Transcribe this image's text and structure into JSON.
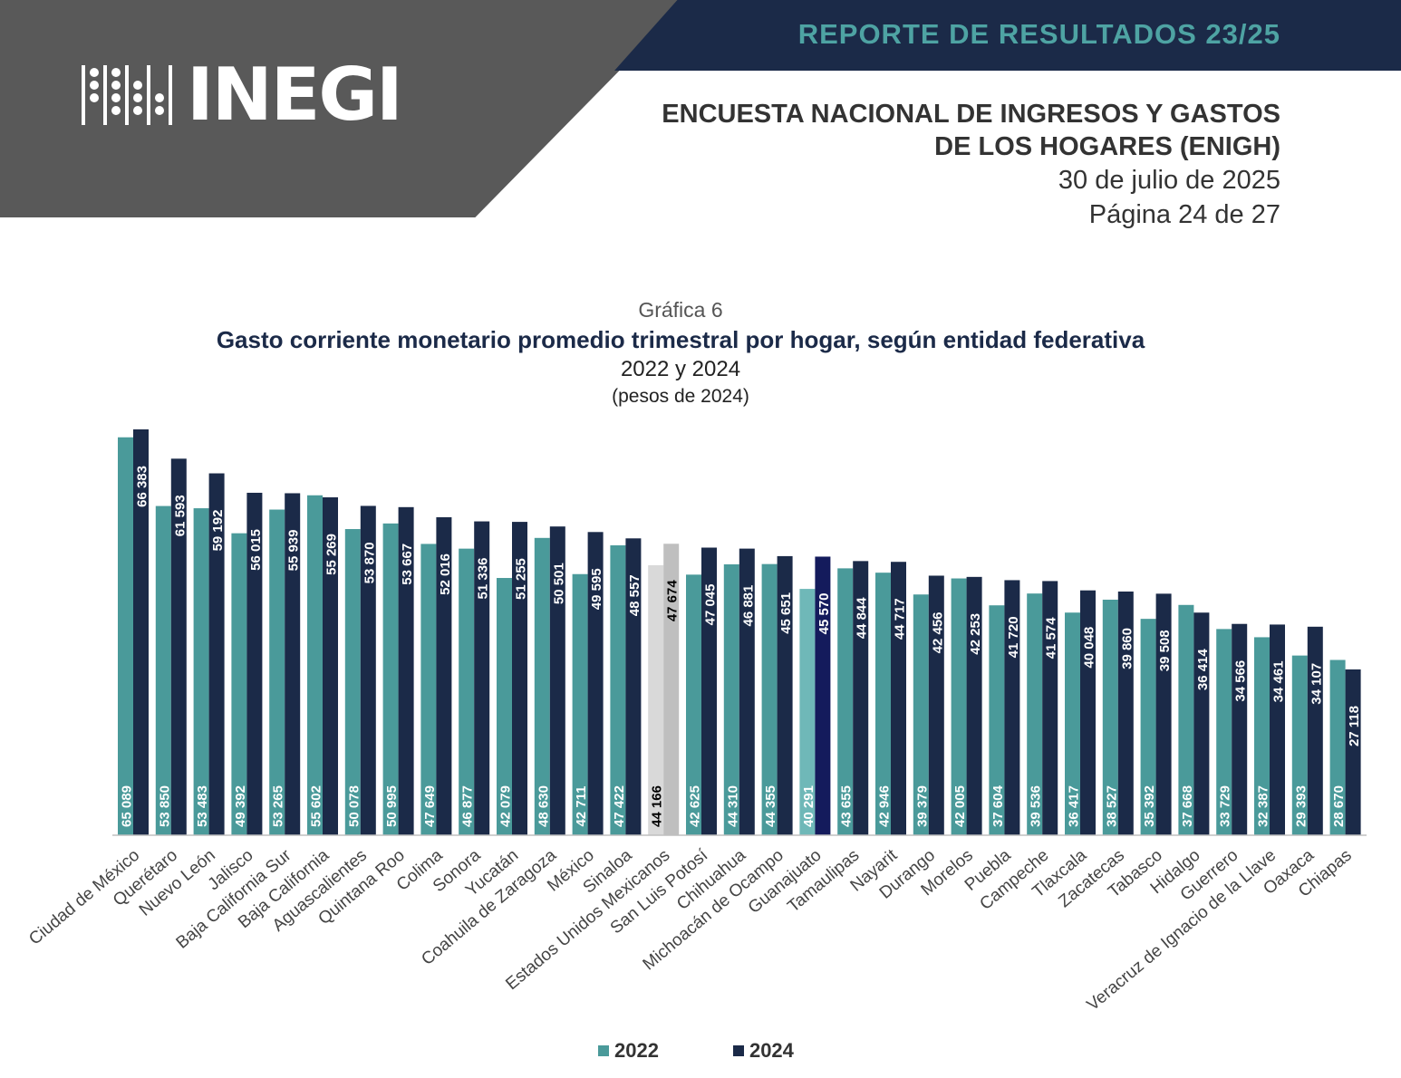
{
  "header": {
    "report_title": "REPORTE DE RESULTADOS 23/25",
    "logo_text": "INEGI",
    "survey_title_line1": "ENCUESTA NACIONAL DE INGRESOS Y GASTOS",
    "survey_title_line2": "DE LOS HOGARES (ENIGH)",
    "date": "30 de julio de 2025",
    "page": "Página 24 de 27"
  },
  "colors": {
    "series_2022": "#4a9a9a",
    "series_2024": "#1b2a48",
    "national_2022": "#d9d9d9",
    "national_2024": "#bfbfbf",
    "highlight_2022": "#6fb8b8",
    "highlight_2024": "#141b5c"
  },
  "chart_data": {
    "type": "bar",
    "label": "Gráfica 6",
    "title": "Gasto corriente monetario promedio trimestral por hogar, según entidad federativa",
    "subtitle": "2022 y 2024",
    "unit": "(pesos de 2024)",
    "legend_position": "bottom",
    "grid": false,
    "ylim": [
      0,
      68000
    ],
    "categories": [
      "Ciudad de México",
      "Querétaro",
      "Nuevo León",
      "Jalisco",
      "Baja California Sur",
      "Baja California",
      "Aguascalientes",
      "Quintana Roo",
      "Colima",
      "Sonora",
      "Yucatán",
      "Coahuila de Zaragoza",
      "México",
      "Sinaloa",
      "Estados Unidos Mexicanos",
      "San Luis Potosí",
      "Chihuahua",
      "Michoacán de Ocampo",
      "Guanajuato",
      "Tamaulipas",
      "Nayarit",
      "Durango",
      "Morelos",
      "Puebla",
      "Campeche",
      "Tlaxcala",
      "Zacatecas",
      "Tabasco",
      "Hidalgo",
      "Guerrero",
      "Veracruz de Ignacio de la Llave",
      "Oaxaca",
      "Chiapas"
    ],
    "series": [
      {
        "name": "2022",
        "values": [
          65089,
          53850,
          53483,
          49392,
          53265,
          55602,
          50078,
          50995,
          47649,
          46877,
          42079,
          48630,
          42711,
          47422,
          44166,
          42625,
          44310,
          44355,
          40291,
          43655,
          42946,
          39379,
          42005,
          37604,
          39536,
          36417,
          38527,
          35392,
          37668,
          33729,
          32387,
          29393,
          28670
        ]
      },
      {
        "name": "2024",
        "values": [
          66383,
          61593,
          59192,
          56015,
          55939,
          55269,
          53870,
          53667,
          52016,
          51336,
          51255,
          50501,
          49595,
          48557,
          47674,
          47045,
          46881,
          45651,
          45570,
          44844,
          44717,
          42456,
          42253,
          41720,
          41574,
          40048,
          39860,
          39508,
          36414,
          34566,
          34461,
          34107,
          27118
        ]
      }
    ],
    "labels": {
      "2022": [
        "65 089",
        "53 850",
        "53 483",
        "49 392",
        "53 265",
        "55 602",
        "50 078",
        "50 995",
        "47 649",
        "46 877",
        "42 079",
        "48 630",
        "42 711",
        "47 422",
        "44 166",
        "42 625",
        "44 310",
        "44 355",
        "40 291",
        "43 655",
        "42 946",
        "39 379",
        "42 005",
        "37 604",
        "39 536",
        "36 417",
        "38 527",
        "35 392",
        "37 668",
        "33 729",
        "32 387",
        "29 393",
        "28 670"
      ],
      "2024": [
        "66 383",
        "61 593",
        "59 192",
        "56 015",
        "55 939",
        "55 269",
        "53 870",
        "53 667",
        "52 016",
        "51 336",
        "51 255",
        "50 501",
        "49 595",
        "48 557",
        "47 674",
        "47 045",
        "46 881",
        "45 651",
        "45 570",
        "44 844",
        "44 717",
        "42 456",
        "42 253",
        "41 720",
        "41 574",
        "40 048",
        "39 860",
        "39 508",
        "36 414",
        "34 566",
        "34 461",
        "34 107",
        "27 118"
      ]
    }
  }
}
